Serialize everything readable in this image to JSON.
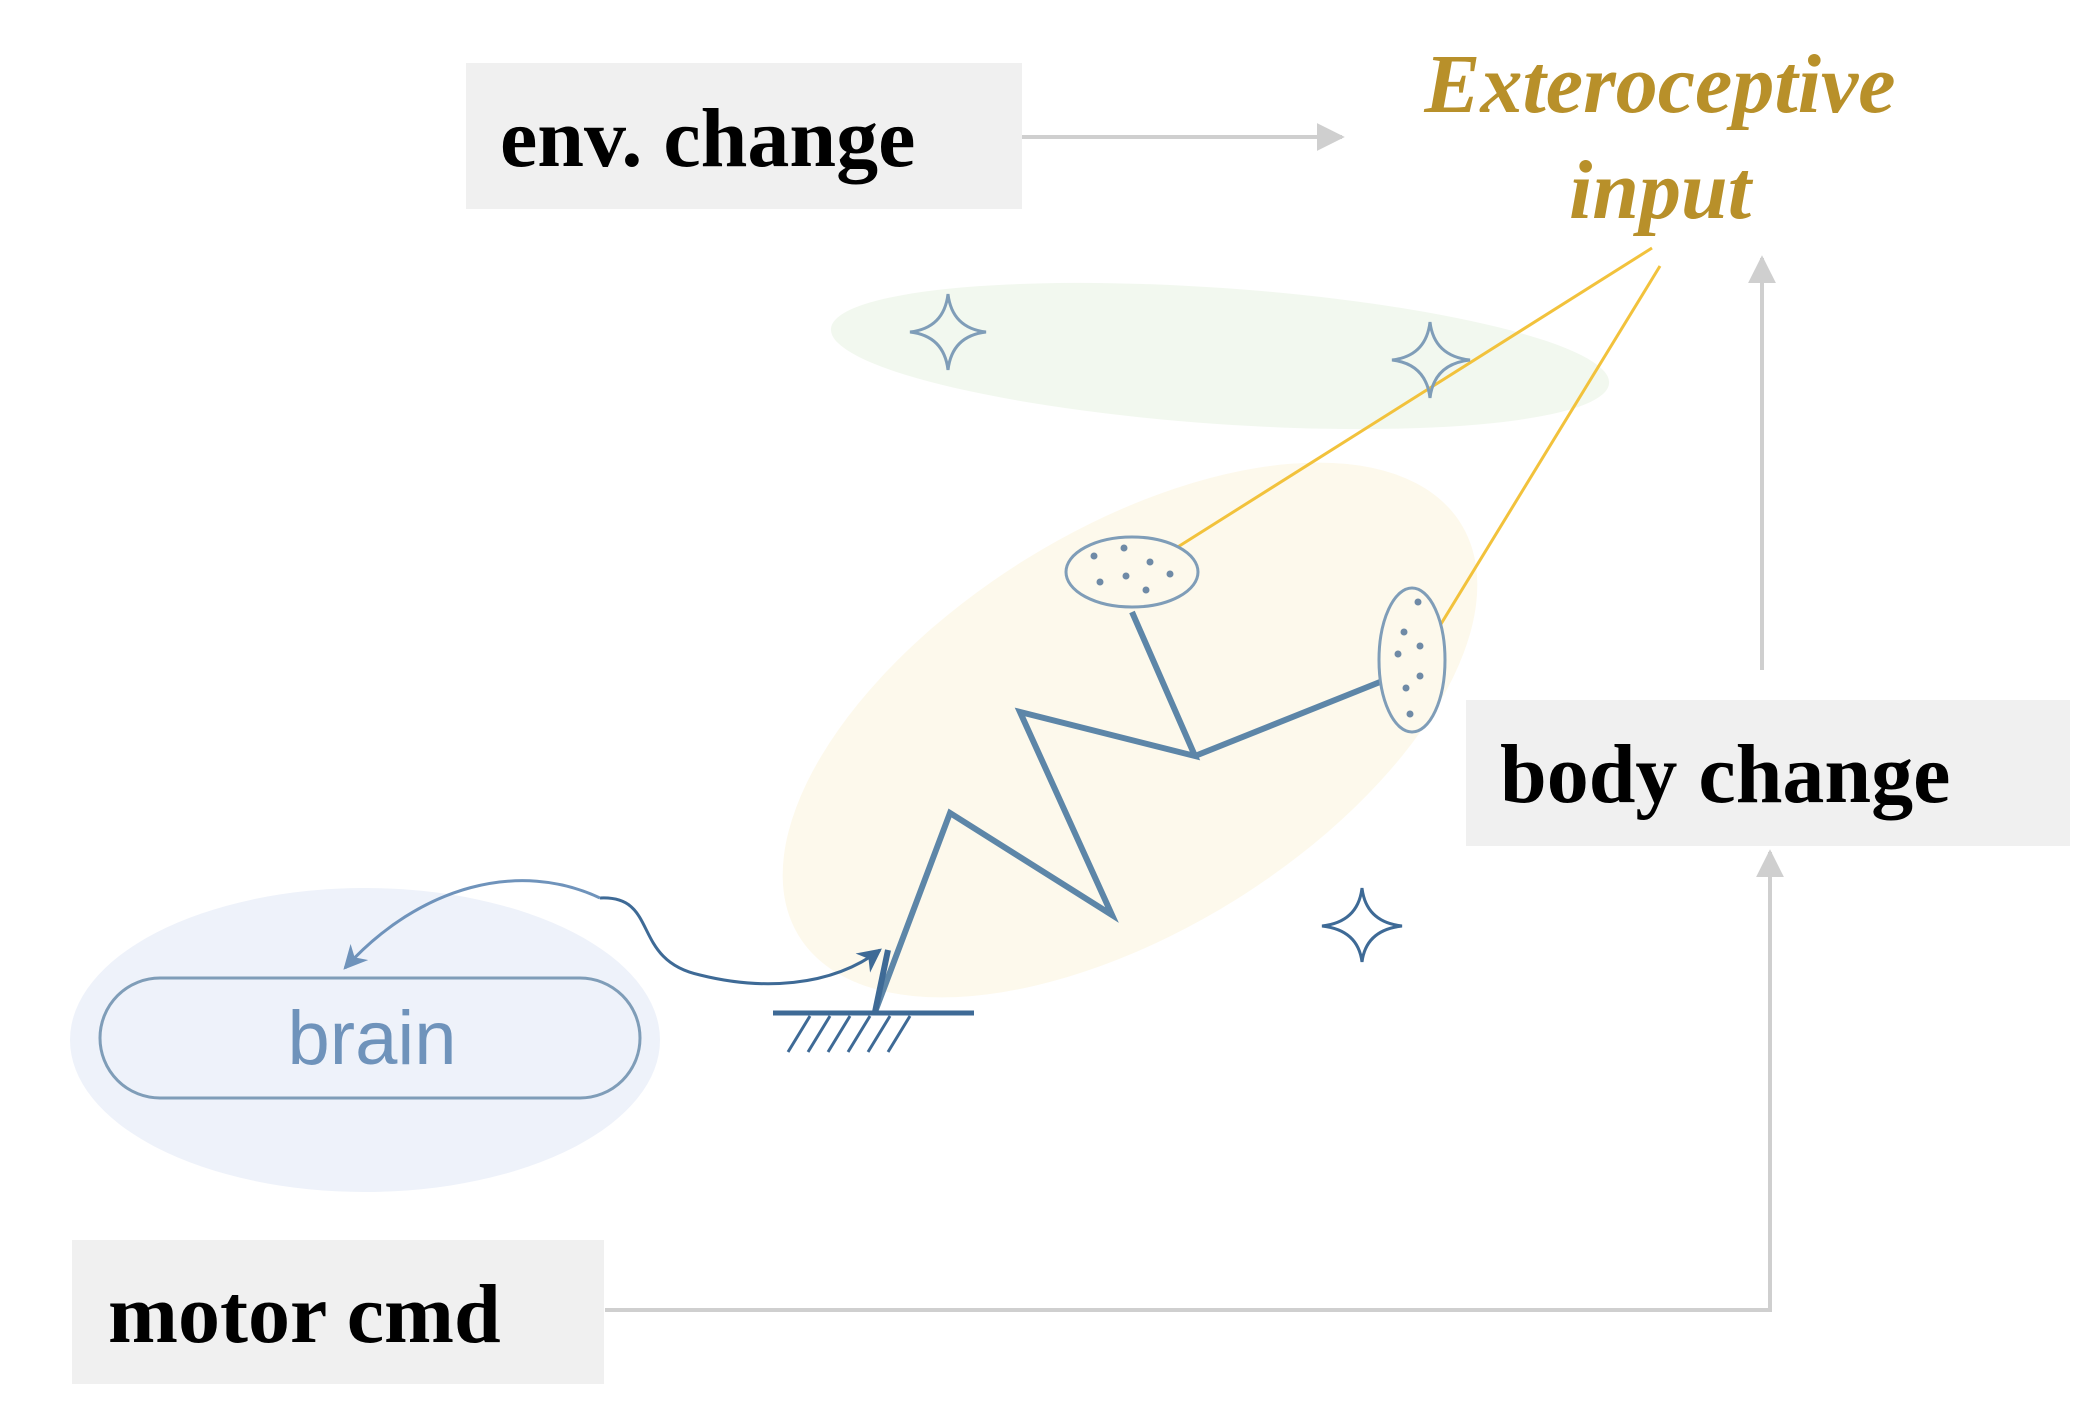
{
  "labels": {
    "env_change": "env. change",
    "body_change": "body change",
    "motor_cmd": "motor cmd",
    "exteroceptive_line1": "Exteroceptive",
    "exteroceptive_line2": "input",
    "brain": "brain"
  },
  "colors": {
    "box_fill": "#f0f0f0",
    "arrow_gray": "#cfcfcf",
    "exteroceptive_gold": "#b8902a",
    "sensor_line_gold": "#f2c23c",
    "robot_blue": "#5d86a8",
    "robot_blue_dark": "#3e6a96",
    "brain_text": "#6f93bb",
    "brain_ellipse": "#eef2fa",
    "env_ellipse": "#eef5ea",
    "body_ellipse": "#fdf9ec"
  },
  "icons": [
    "sparkle-icon",
    "sparkle-icon",
    "sparkle-icon",
    "ground-hatch-icon"
  ]
}
